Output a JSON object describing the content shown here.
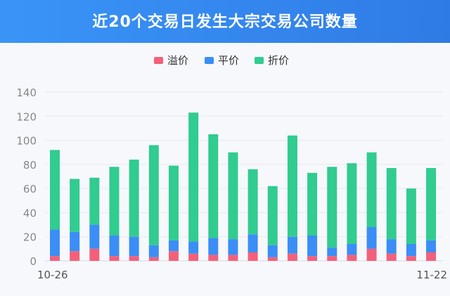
{
  "header": {
    "title": "近20个交易日发生大宗交易公司数量"
  },
  "colors": {
    "premium": "#f4607a",
    "parity": "#3a8ef6",
    "discount": "#31cc8f",
    "header": "#3a94f7"
  },
  "chart_data": {
    "type": "bar",
    "stacked": true,
    "title": "近20个交易日发生大宗交易公司数量",
    "legend_position": "top-center",
    "x_tick_labels": [
      "10-26",
      "11-22"
    ],
    "y_ticks": [
      0,
      20,
      40,
      60,
      80,
      100,
      120,
      140
    ],
    "ylim": [
      0,
      140
    ],
    "grid": true,
    "series": [
      {
        "name": "溢价",
        "color": "#f4607a",
        "values": [
          4,
          8,
          10,
          4,
          4,
          3,
          8,
          6,
          5,
          5,
          7,
          3,
          6,
          4,
          4,
          5,
          10,
          6,
          4,
          7
        ]
      },
      {
        "name": "平价",
        "color": "#3a8ef6",
        "values": [
          22,
          16,
          20,
          17,
          16,
          10,
          9,
          10,
          14,
          13,
          15,
          10,
          14,
          17,
          7,
          9,
          18,
          12,
          10,
          10
        ]
      },
      {
        "name": "折价",
        "color": "#31cc8f",
        "values": [
          66,
          44,
          39,
          57,
          64,
          83,
          62,
          107,
          86,
          72,
          54,
          49,
          84,
          52,
          67,
          67,
          62,
          59,
          46,
          60
        ]
      }
    ]
  }
}
